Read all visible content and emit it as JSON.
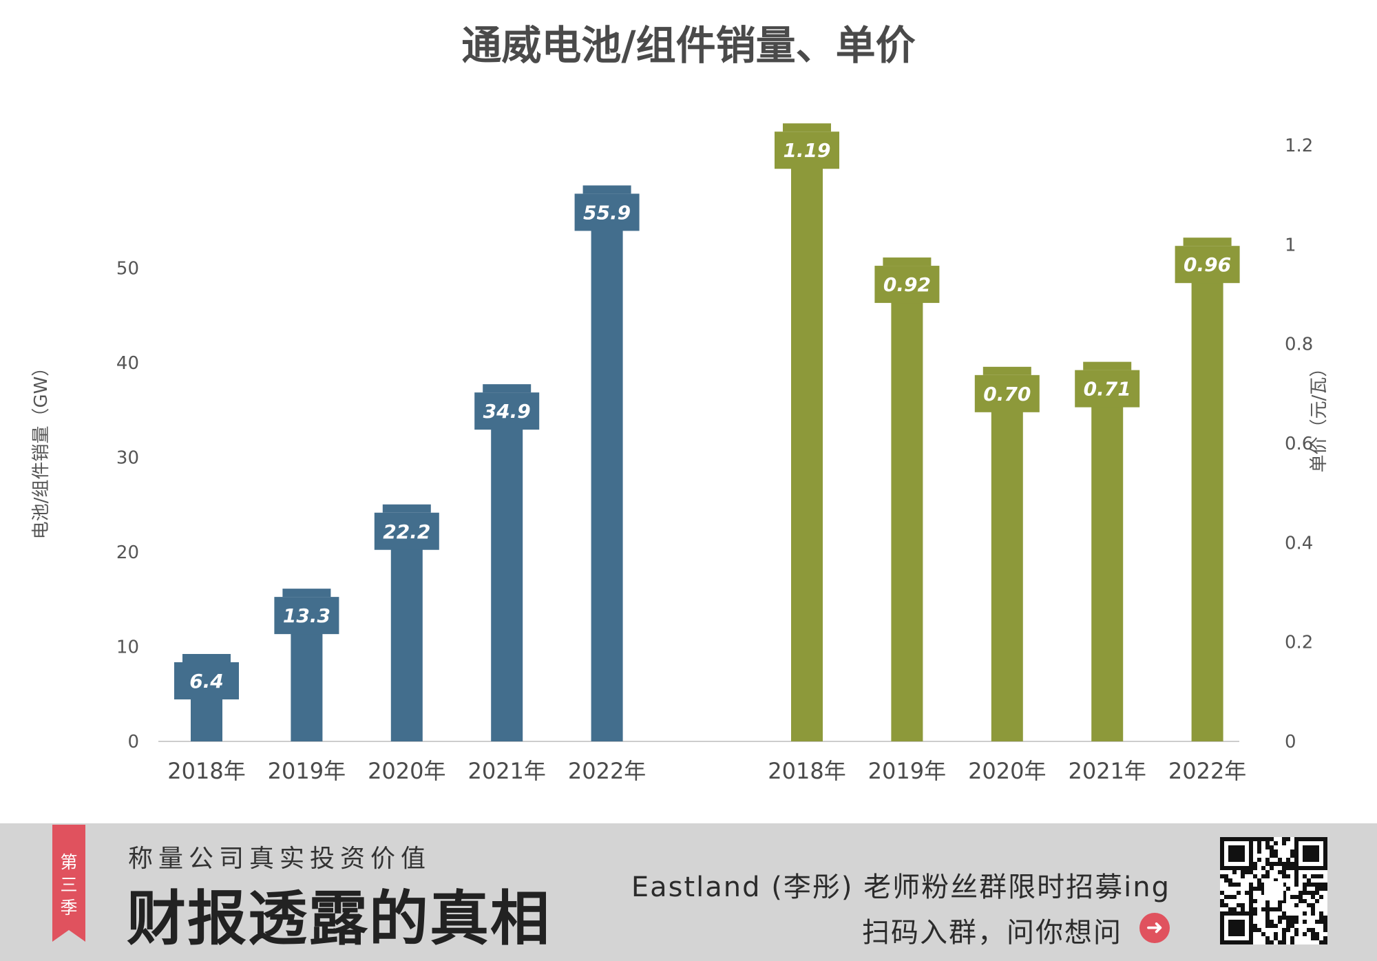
{
  "chart_data": {
    "type": "bar",
    "title": "通威电池/组件销量、单价",
    "panels": [
      {
        "name": "sales",
        "categories": [
          "2018年",
          "2019年",
          "2020年",
          "2021年",
          "2022年"
        ],
        "values": [
          6.4,
          13.3,
          22.2,
          34.9,
          55.9
        ],
        "labels": [
          "6.4",
          "13.3",
          "22.2",
          "34.9",
          "55.9"
        ],
        "ylabel": "电池/组件销量（GW）",
        "axis_side": "left",
        "ylim": [
          0,
          56
        ],
        "yticks": [
          "0",
          "10",
          "20",
          "30",
          "40",
          "50"
        ],
        "color": "#436e8d"
      },
      {
        "name": "price",
        "categories": [
          "2018年",
          "2019年",
          "2020年",
          "2021年",
          "2022年"
        ],
        "values": [
          1.19,
          0.92,
          0.7,
          0.71,
          0.96
        ],
        "labels": [
          "1.19",
          "0.92",
          "0.70",
          "0.71",
          "0.96"
        ],
        "ylabel": "单价（元/瓦）",
        "axis_side": "right",
        "ylim": [
          0,
          1.2
        ],
        "yticks": [
          "0",
          "0.2",
          "0.4",
          "0.6",
          "0.8",
          "1",
          "1.2"
        ],
        "color": "#8d993a"
      }
    ],
    "grid": false,
    "legend": "none"
  },
  "banner": {
    "ribbon_text": [
      "第",
      "三",
      "季"
    ],
    "slogan": "称量公司真实投资价值",
    "brand": "财报透露的真相",
    "promo": "Eastland (李彤) 老师粉丝群限时招募ing",
    "scan": "扫码入群，问你想问",
    "icons": [
      "arrow-right-icon",
      "qr-code-icon"
    ],
    "accent": "#e0525e",
    "background": "#d4d4d4"
  }
}
